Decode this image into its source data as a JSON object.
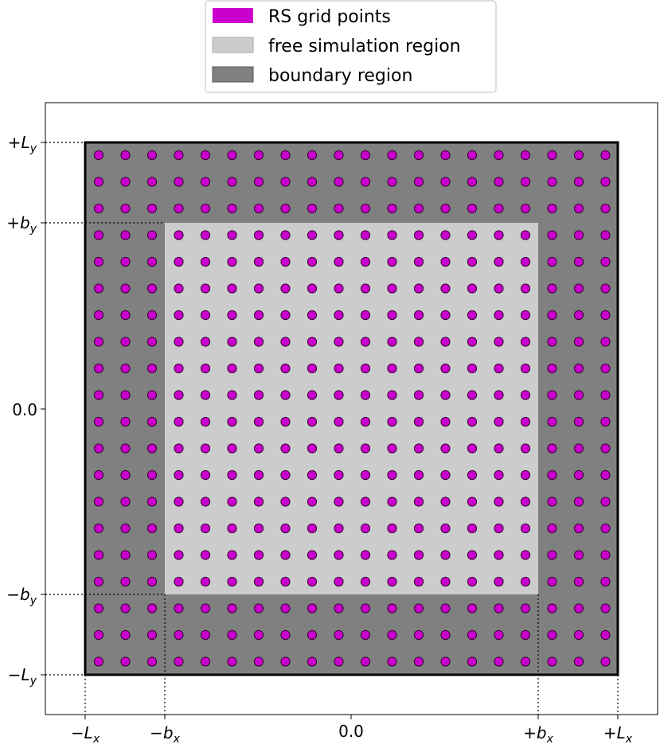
{
  "legend": {
    "items": [
      {
        "label": "RS grid points",
        "color": "#cc00cc"
      },
      {
        "label": "free simulation region",
        "color": "#cccccc"
      },
      {
        "label": "boundary region",
        "color": "#808080"
      }
    ]
  },
  "axes": {
    "x_ticks": {
      "minus_L": {
        "sign": "−",
        "base": "L",
        "sub": "x"
      },
      "minus_b": {
        "sign": "−",
        "base": "b",
        "sub": "x"
      },
      "zero": "0.0",
      "plus_b": {
        "sign": "+",
        "base": "b",
        "sub": "x"
      },
      "plus_L": {
        "sign": "+",
        "base": "L",
        "sub": "x"
      }
    },
    "y_ticks": {
      "plus_L": {
        "sign": "+",
        "base": "L",
        "sub": "y"
      },
      "plus_b": {
        "sign": "+",
        "base": "b",
        "sub": "y"
      },
      "zero": "0.0",
      "minus_b": {
        "sign": "−",
        "base": "b",
        "sub": "y"
      },
      "minus_L": {
        "sign": "−",
        "base": "L",
        "sub": "y"
      }
    }
  },
  "colors": {
    "boundary": "#808080",
    "free": "#cccccc",
    "point_fill": "#cc00cc",
    "point_edge": "#330033",
    "frame": "#000000"
  },
  "grid": {
    "columns": 20,
    "rows": 20
  }
}
